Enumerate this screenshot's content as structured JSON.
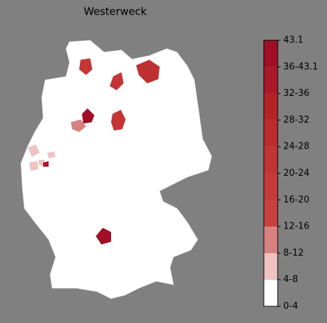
{
  "title": "Westerweck",
  "colorbar": {
    "ticks": [
      "0-4",
      "4-8",
      "8-12",
      "12-16",
      "16-20",
      "20-24",
      "24-28",
      "28-32",
      "32-36",
      "36-43.1",
      "43.1"
    ],
    "colors": [
      "#ffffff",
      "#f0c2c2",
      "#d98080",
      "#c94040",
      "#c63a3a",
      "#c13434",
      "#bb2d2d",
      "#b42427",
      "#a9192a",
      "#a00f25"
    ]
  }
}
